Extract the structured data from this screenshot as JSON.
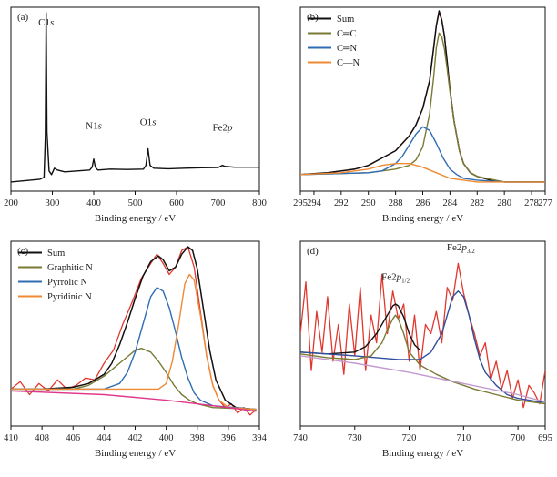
{
  "chart_data": [
    {
      "type": "line",
      "panel_label": "(a)",
      "xlabel": "Binding energy / eV",
      "ylabel": "",
      "xlim": [
        200,
        800
      ],
      "ylim": [
        0,
        1
      ],
      "x_reversed": false,
      "ticks": [
        "200",
        "300",
        "400",
        "500",
        "600",
        "700",
        "800"
      ],
      "tick_values": [
        200,
        300,
        400,
        500,
        600,
        700,
        800
      ],
      "annotations": [
        {
          "text": "C1",
          "italic": "s",
          "x": 285,
          "y": 0.9
        },
        {
          "text": "N1",
          "italic": "s",
          "x": 400,
          "y": 0.34
        },
        {
          "text": "O1",
          "italic": "s",
          "x": 531,
          "y": 0.36
        },
        {
          "text": "Fe2",
          "italic": "p",
          "x": 711,
          "y": 0.33
        }
      ],
      "series": [
        {
          "color": "#111111",
          "x": [
            200,
            270,
            280,
            283,
            285,
            287,
            292,
            298,
            305,
            312,
            330,
            360,
            390,
            396,
            400,
            404,
            410,
            440,
            480,
            520,
            526,
            531,
            536,
            545,
            580,
            620,
            660,
            700,
            706,
            711,
            716,
            740,
            770,
            800
          ],
          "y": [
            0.05,
            0.065,
            0.075,
            0.3,
            0.97,
            0.32,
            0.11,
            0.09,
            0.125,
            0.115,
            0.105,
            0.11,
            0.115,
            0.13,
            0.175,
            0.13,
            0.115,
            0.12,
            0.118,
            0.12,
            0.14,
            0.23,
            0.14,
            0.125,
            0.122,
            0.125,
            0.127,
            0.128,
            0.135,
            0.14,
            0.135,
            0.13,
            0.13,
            0.13
          ]
        }
      ]
    },
    {
      "type": "line",
      "panel_label": "(b)",
      "xlabel": "Binding energy / eV",
      "ylabel": "",
      "xlim": [
        295,
        277
      ],
      "ylim": [
        0,
        1
      ],
      "x_reversed": true,
      "ticks": [
        "295",
        "294",
        "292",
        "290",
        "288",
        "286",
        "284",
        "282",
        "280",
        "278",
        "277"
      ],
      "tick_values": [
        295,
        294,
        292,
        290,
        288,
        286,
        284,
        282,
        280,
        278,
        277
      ],
      "legend": {
        "placement": "top-left",
        "entries": [
          {
            "label": "Sum",
            "color": "#111111"
          },
          {
            "label": "C═C",
            "color": "#7a7a35"
          },
          {
            "label": "C═N",
            "color": "#2f6db3"
          },
          {
            "label": "C—N",
            "color": "#ef8a35"
          }
        ]
      },
      "series": [
        {
          "label": "raw",
          "color": "#e0382e",
          "x": [
            295,
            293,
            291,
            290,
            289,
            288,
            287.5,
            287,
            286.5,
            286,
            285.5,
            285.2,
            285,
            284.8,
            284.6,
            284.4,
            284.2,
            284,
            283.7,
            283.3,
            283,
            282.5,
            282,
            281,
            280,
            279,
            278,
            277
          ],
          "y": [
            0.09,
            0.1,
            0.12,
            0.14,
            0.18,
            0.22,
            0.26,
            0.3,
            0.36,
            0.45,
            0.6,
            0.78,
            0.9,
            0.97,
            0.93,
            0.84,
            0.7,
            0.55,
            0.38,
            0.22,
            0.15,
            0.1,
            0.08,
            0.06,
            0.05,
            0.05,
            0.05,
            0.05
          ]
        },
        {
          "label": "Sum",
          "color": "#111111",
          "x": [
            295,
            293,
            291,
            290,
            289,
            288,
            287.5,
            287,
            286.5,
            286,
            285.5,
            285.2,
            285,
            284.8,
            284.6,
            284.4,
            284.2,
            284,
            283.7,
            283.3,
            283,
            282.5,
            282,
            281,
            280,
            279,
            278,
            277
          ],
          "y": [
            0.09,
            0.1,
            0.12,
            0.14,
            0.18,
            0.22,
            0.26,
            0.3,
            0.36,
            0.45,
            0.6,
            0.78,
            0.9,
            0.98,
            0.93,
            0.84,
            0.7,
            0.55,
            0.38,
            0.22,
            0.15,
            0.1,
            0.08,
            0.06,
            0.05,
            0.05,
            0.05,
            0.05
          ]
        },
        {
          "label": "C═C",
          "color": "#7a7a35",
          "x": [
            295,
            290,
            288,
            287,
            286.5,
            286,
            285.5,
            285.2,
            285,
            284.8,
            284.6,
            284.4,
            284.2,
            284,
            283.7,
            283.3,
            283,
            282.5,
            282,
            280,
            277
          ],
          "y": [
            0.09,
            0.1,
            0.12,
            0.14,
            0.17,
            0.24,
            0.42,
            0.62,
            0.78,
            0.86,
            0.84,
            0.77,
            0.66,
            0.54,
            0.38,
            0.22,
            0.15,
            0.1,
            0.08,
            0.05,
            0.05
          ]
        },
        {
          "label": "C═N",
          "color": "#2f6db3",
          "x": [
            295,
            290,
            289,
            288,
            287.5,
            287,
            286.5,
            286,
            285.5,
            285,
            284.5,
            284,
            283.5,
            283,
            282,
            280,
            277
          ],
          "y": [
            0.09,
            0.1,
            0.11,
            0.15,
            0.19,
            0.25,
            0.31,
            0.35,
            0.33,
            0.26,
            0.18,
            0.12,
            0.09,
            0.07,
            0.06,
            0.05,
            0.05
          ]
        },
        {
          "label": "C—N",
          "color": "#ef8a35",
          "x": [
            295,
            292,
            290,
            289,
            288,
            287,
            286,
            285,
            284,
            283,
            282,
            280,
            277
          ],
          "y": [
            0.09,
            0.1,
            0.12,
            0.14,
            0.15,
            0.15,
            0.13,
            0.1,
            0.07,
            0.06,
            0.05,
            0.05,
            0.05
          ]
        }
      ]
    },
    {
      "type": "line",
      "panel_label": "(c)",
      "xlabel": "Binding energy / eV",
      "ylabel": "",
      "xlim": [
        410,
        394
      ],
      "ylim": [
        0,
        1
      ],
      "x_reversed": true,
      "ticks": [
        "410",
        "408",
        "406",
        "404",
        "402",
        "400",
        "398",
        "396",
        "394"
      ],
      "tick_values": [
        410,
        408,
        406,
        404,
        402,
        400,
        398,
        396,
        394
      ],
      "legend": {
        "placement": "top-left",
        "entries": [
          {
            "label": "Sum",
            "color": "#111111"
          },
          {
            "label": "Graphitic N",
            "color": "#7a7a35"
          },
          {
            "label": "Pyrrolic N",
            "color": "#2f6db3"
          },
          {
            "label": "Pyridinic N",
            "color": "#ef8a35"
          }
        ]
      },
      "series": [
        {
          "label": "raw",
          "color": "#e0382e",
          "x": [
            410,
            409.4,
            408.8,
            408.2,
            407.6,
            407,
            406.4,
            405.8,
            405.2,
            404.6,
            404,
            403.4,
            402.8,
            402.2,
            401.6,
            401,
            400.6,
            400.2,
            399.8,
            399.4,
            399,
            398.6,
            398.2,
            397.8,
            397.4,
            397,
            396.6,
            396.2,
            395.8,
            395.4,
            395,
            394.6,
            394.2
          ],
          "y": [
            0.2,
            0.24,
            0.17,
            0.23,
            0.19,
            0.25,
            0.2,
            0.22,
            0.26,
            0.25,
            0.34,
            0.41,
            0.55,
            0.67,
            0.8,
            0.88,
            0.93,
            0.88,
            0.82,
            0.86,
            0.95,
            0.97,
            0.86,
            0.62,
            0.38,
            0.22,
            0.14,
            0.1,
            0.12,
            0.07,
            0.1,
            0.06,
            0.09
          ]
        },
        {
          "label": "Sum",
          "color": "#111111",
          "x": [
            410,
            408,
            406,
            405,
            404,
            403.5,
            403,
            402.5,
            402,
            401.5,
            401,
            400.5,
            400.2,
            399.8,
            399.4,
            399,
            398.6,
            398.3,
            398,
            397.6,
            397.2,
            396.8,
            396.2,
            395.5,
            394.2
          ],
          "y": [
            0.2,
            0.2,
            0.21,
            0.23,
            0.28,
            0.34,
            0.44,
            0.56,
            0.69,
            0.81,
            0.89,
            0.92,
            0.9,
            0.84,
            0.86,
            0.93,
            0.97,
            0.95,
            0.85,
            0.63,
            0.41,
            0.25,
            0.14,
            0.1,
            0.09
          ]
        },
        {
          "label": "Graphitic N",
          "color": "#7a7a35",
          "x": [
            410,
            406,
            405,
            404,
            403,
            402,
            401.6,
            401,
            400.5,
            400,
            399.5,
            399,
            398.5,
            398,
            397,
            394.2
          ],
          "y": [
            0.2,
            0.2,
            0.22,
            0.27,
            0.34,
            0.41,
            0.42,
            0.4,
            0.35,
            0.29,
            0.22,
            0.17,
            0.14,
            0.12,
            0.1,
            0.09
          ]
        },
        {
          "label": "Pyrrolic N",
          "color": "#2f6db3",
          "x": [
            410,
            404,
            403,
            402.5,
            402,
            401.5,
            401,
            400.6,
            400.2,
            399.8,
            399.4,
            399,
            398.6,
            398.2,
            397.8,
            397,
            394.2
          ],
          "y": [
            0.2,
            0.2,
            0.23,
            0.29,
            0.4,
            0.55,
            0.7,
            0.75,
            0.73,
            0.64,
            0.51,
            0.37,
            0.26,
            0.18,
            0.14,
            0.11,
            0.09
          ]
        },
        {
          "label": "Pyridinic N",
          "color": "#ef8a35",
          "x": [
            410,
            400.5,
            400,
            399.6,
            399.2,
            398.8,
            398.5,
            398.2,
            397.8,
            397.4,
            397,
            396.6,
            396,
            394.2
          ],
          "y": [
            0.2,
            0.2,
            0.23,
            0.35,
            0.55,
            0.77,
            0.82,
            0.79,
            0.6,
            0.38,
            0.22,
            0.14,
            0.1,
            0.09
          ]
        },
        {
          "label": "baseline",
          "color": "#e0368c",
          "x": [
            410,
            404,
            400,
            396,
            394.2
          ],
          "y": [
            0.19,
            0.17,
            0.14,
            0.1,
            0.08
          ]
        }
      ]
    },
    {
      "type": "line",
      "panel_label": "(d)",
      "xlabel": "Binding energy / eV",
      "ylabel": "",
      "xlim": [
        740,
        695
      ],
      "ylim": [
        0,
        1
      ],
      "x_reversed": true,
      "ticks": [
        "740",
        "730",
        "720",
        "710",
        "700",
        "695"
      ],
      "tick_values": [
        740,
        730,
        720,
        710,
        700,
        695
      ],
      "annotations": [
        {
          "text": "Fe2",
          "italic": "p",
          "sub": "1/2",
          "x": 722.5,
          "y": 0.79
        },
        {
          "text": "Fe2",
          "italic": "p",
          "sub": "3/2",
          "x": 710.5,
          "y": 0.95
        }
      ],
      "series": [
        {
          "label": "raw",
          "color": "#e0382e",
          "x": [
            740,
            739,
            738,
            737,
            736,
            735,
            734,
            733,
            732,
            731,
            730,
            729,
            728,
            727,
            726,
            725,
            724,
            723,
            722,
            721,
            720,
            719,
            718,
            717,
            716,
            715,
            714,
            713,
            712,
            711,
            710,
            709,
            708,
            707,
            706,
            705,
            704,
            703,
            702,
            701,
            700,
            699,
            698,
            697,
            696,
            695
          ],
          "y": [
            0.5,
            0.78,
            0.3,
            0.62,
            0.4,
            0.7,
            0.35,
            0.55,
            0.28,
            0.66,
            0.38,
            0.75,
            0.3,
            0.6,
            0.45,
            0.82,
            0.5,
            0.73,
            0.58,
            0.66,
            0.35,
            0.6,
            0.3,
            0.55,
            0.5,
            0.62,
            0.45,
            0.75,
            0.68,
            0.88,
            0.72,
            0.6,
            0.5,
            0.38,
            0.45,
            0.25,
            0.35,
            0.2,
            0.3,
            0.15,
            0.25,
            0.1,
            0.22,
            0.18,
            0.12,
            0.3
          ]
        },
        {
          "label": "envelope",
          "color": "#111111",
          "x": [
            740,
            735,
            730,
            728,
            726,
            724,
            723,
            722.5,
            722,
            721,
            720,
            719,
            718
          ],
          "y": [
            0.4,
            0.39,
            0.4,
            0.43,
            0.5,
            0.6,
            0.65,
            0.66,
            0.65,
            0.59,
            0.5,
            0.44,
            0.41
          ]
        },
        {
          "label": "Fe2p3/2 fit",
          "color": "#2e4e9e",
          "x": [
            740,
            730,
            722,
            718,
            716,
            714,
            713,
            712,
            711,
            710,
            709,
            708,
            707,
            706,
            704,
            702,
            700,
            698,
            696,
            695
          ],
          "y": [
            0.4,
            0.38,
            0.36,
            0.36,
            0.4,
            0.5,
            0.6,
            0.7,
            0.73,
            0.7,
            0.6,
            0.47,
            0.36,
            0.29,
            0.22,
            0.17,
            0.15,
            0.14,
            0.13,
            0.13
          ]
        },
        {
          "label": "Fe2p1/2 component",
          "color": "#7a7a35",
          "x": [
            740,
            735,
            730,
            727,
            725,
            724,
            723,
            722.5,
            722,
            721,
            720,
            718,
            715,
            712,
            708,
            704,
            700,
            695
          ],
          "y": [
            0.39,
            0.37,
            0.36,
            0.38,
            0.45,
            0.52,
            0.58,
            0.6,
            0.58,
            0.5,
            0.4,
            0.33,
            0.28,
            0.24,
            0.2,
            0.17,
            0.14,
            0.12
          ]
        },
        {
          "label": "baseline",
          "color": "#c39ad0",
          "x": [
            740,
            730,
            720,
            710,
            700,
            695
          ],
          "y": [
            0.38,
            0.34,
            0.29,
            0.23,
            0.17,
            0.13
          ]
        }
      ]
    }
  ]
}
